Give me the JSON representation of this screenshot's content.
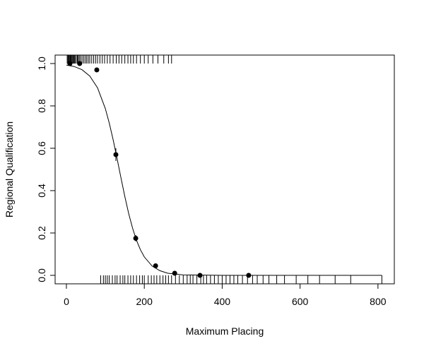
{
  "chart_data": {
    "type": "logistic",
    "xlabel": "Maximum Placing",
    "ylabel": "Regional Qualification",
    "xlim": [
      -29,
      842
    ],
    "ylim": [
      -0.04,
      1.04
    ],
    "xticks": [
      0,
      200,
      400,
      600,
      800
    ],
    "yticks": [
      {
        "value": 0,
        "label": "0.0"
      },
      0.2,
      0.4,
      0.6,
      0.8,
      {
        "value": 1,
        "label": "1.0"
      }
    ],
    "color": "#000000",
    "points": {
      "x": [
        9,
        34,
        78,
        127,
        178,
        229,
        278,
        343,
        468
      ],
      "values": [
        1.0,
        1.0,
        0.97,
        0.57,
        0.175,
        0.045,
        0.01,
        0.0,
        0.0
      ],
      "errors": [
        0,
        0,
        0.01,
        0.03,
        0.015,
        0.01,
        0.005,
        0,
        0
      ]
    },
    "curve": {
      "x": [
        0,
        20,
        40,
        60,
        80,
        100,
        110,
        120,
        130,
        140,
        150,
        160,
        170,
        180,
        190,
        200,
        220,
        240,
        260,
        300,
        400,
        500,
        600,
        700,
        810
      ],
      "values": [
        0.993,
        0.986,
        0.971,
        0.941,
        0.885,
        0.787,
        0.719,
        0.64,
        0.552,
        0.461,
        0.372,
        0.291,
        0.222,
        0.165,
        0.121,
        0.087,
        0.044,
        0.022,
        0.01,
        0.002,
        0,
        0,
        0,
        0,
        0
      ]
    },
    "rug_top": [
      2,
      4,
      5,
      6,
      8,
      10,
      12,
      14,
      16,
      18,
      20,
      22,
      25,
      28,
      30,
      33,
      36,
      40,
      44,
      48,
      52,
      56,
      60,
      65,
      70,
      75,
      80,
      86,
      92,
      98,
      105,
      112,
      120,
      128,
      135,
      142,
      150,
      158,
      165,
      172,
      180,
      190,
      200,
      210,
      222,
      235,
      250,
      262,
      270
    ],
    "rug_bottom": [
      88,
      95,
      100,
      105,
      110,
      118,
      125,
      130,
      138,
      145,
      150,
      158,
      165,
      172,
      180,
      188,
      195,
      200,
      210,
      218,
      225,
      232,
      240,
      248,
      255,
      262,
      270,
      280,
      290,
      300,
      310,
      318,
      325,
      335,
      345,
      352,
      360,
      370,
      380,
      390,
      400,
      410,
      420,
      430,
      440,
      452,
      465,
      478,
      490,
      505,
      520,
      540,
      560,
      590,
      620,
      650,
      690,
      730,
      810
    ]
  }
}
